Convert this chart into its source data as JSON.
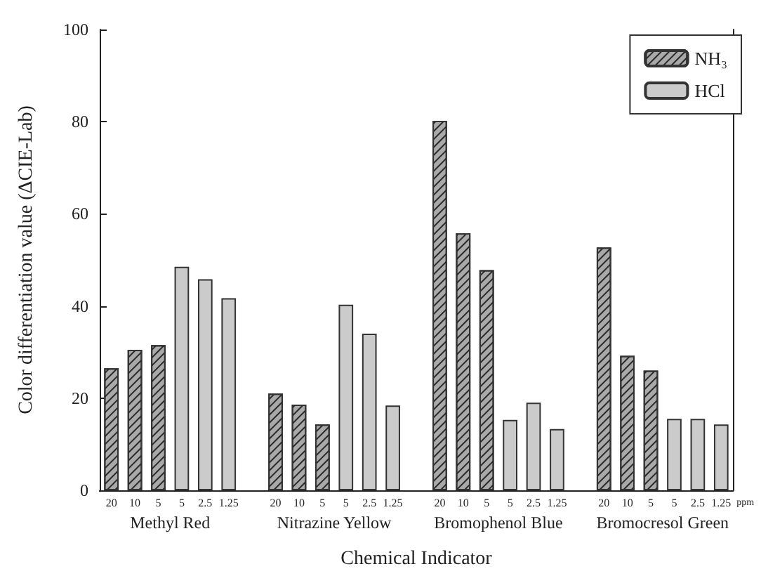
{
  "chart_data": {
    "type": "bar",
    "xlabel": "Chemical Indicator",
    "ylabel": "Color differentiation value (ΔCIE-Lab)",
    "categories": [
      "20",
      "10",
      "5",
      "5",
      "2.5",
      "1.25",
      null,
      "20",
      "10",
      "5",
      "5",
      "2.5",
      "1.25",
      null,
      "20",
      "10",
      "5",
      "5",
      "2.5",
      "1.25",
      null,
      "20",
      "10",
      "5",
      "5",
      "2.5",
      "1.25"
    ],
    "series": [
      {
        "name": "NH₃",
        "color": "#a9a9a9",
        "values": [
          26.5,
          30.5,
          31.5,
          null,
          null,
          null,
          null,
          21,
          18.6,
          14.3,
          null,
          null,
          null,
          null,
          80.2,
          55.8,
          47.8,
          null,
          null,
          null,
          null,
          52.7,
          29.2,
          26,
          null,
          null,
          null
        ]
      },
      {
        "name": "HCl",
        "color": "#cbcbcb",
        "values": [
          null,
          null,
          null,
          48.5,
          45.8,
          41.7,
          null,
          null,
          null,
          null,
          40.3,
          34,
          18.4,
          null,
          null,
          null,
          null,
          15.3,
          19,
          13.3,
          null,
          null,
          null,
          null,
          15.5,
          15.5,
          14.3
        ]
      }
    ],
    "annotations": [
      "Methyl Red",
      "Nitrazine Yellow",
      "Bromophenol Blue",
      "Bromocresol Green",
      "ppm"
    ],
    "ylim": [
      0,
      100
    ],
    "yticks": [
      0,
      20,
      40,
      60,
      80,
      100
    ],
    "grid": false,
    "legend": "top right"
  }
}
